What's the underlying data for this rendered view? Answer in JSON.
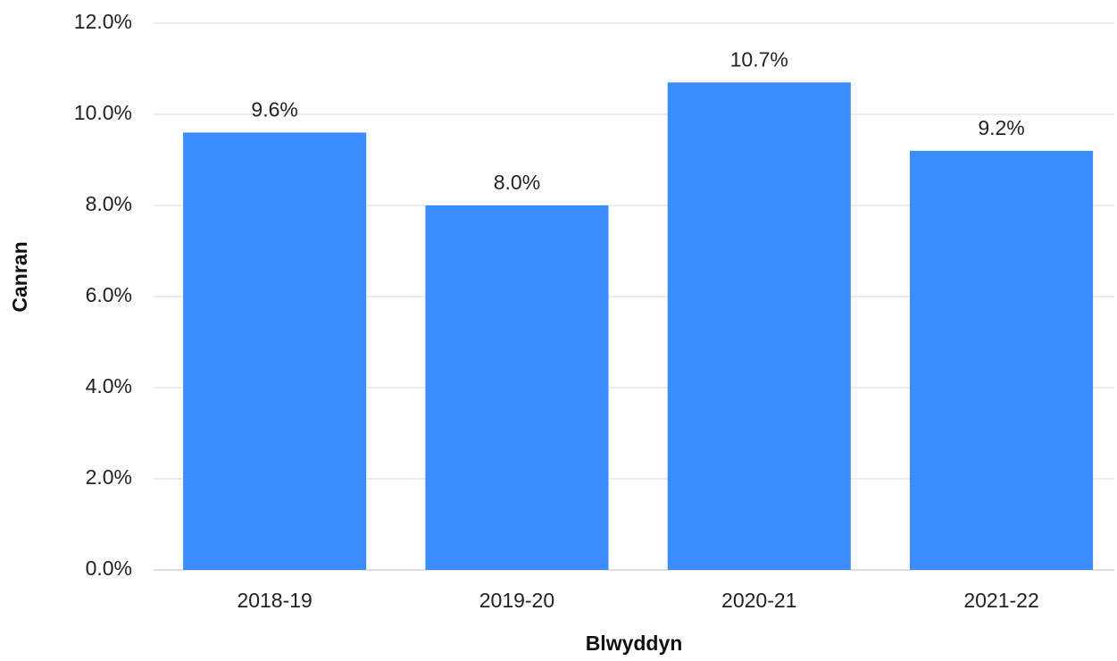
{
  "chart_data": {
    "type": "bar",
    "x_label": "Blwyddyn",
    "y_label": "Canran",
    "categories": [
      "2018-19",
      "2019-20",
      "2020-21",
      "2021-22"
    ],
    "values": [
      9.6,
      8.0,
      10.7,
      9.2
    ],
    "value_labels": [
      "9.6%",
      "8.0%",
      "10.7%",
      "9.2%"
    ],
    "color": "#3a8cff",
    "ylim": [
      0,
      12
    ],
    "yticks": [
      {
        "value": 0,
        "label": "0.0%"
      },
      {
        "value": 2,
        "label": "2.0%"
      },
      {
        "value": 4,
        "label": "4.0%"
      },
      {
        "value": 6,
        "label": "6.0%"
      },
      {
        "value": 8,
        "label": "8.0%"
      },
      {
        "value": 10,
        "label": "10.0%"
      },
      {
        "value": 12,
        "label": "12.0%"
      }
    ],
    "grid": true
  }
}
